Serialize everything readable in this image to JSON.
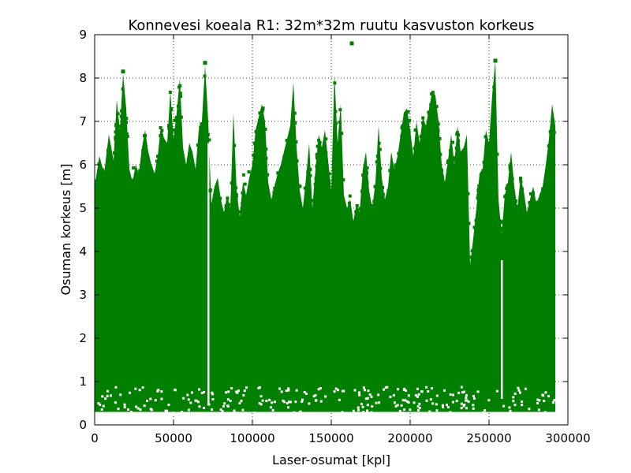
{
  "chart_data": {
    "type": "scatter",
    "title": "Konnevesi koeala R1: 32m*32m ruutu kasvuston korkeus",
    "xlabel": "Laser-osumat [kpl]",
    "ylabel": "Osuman korkeus [m]",
    "xlim": [
      0,
      300000
    ],
    "ylim": [
      0,
      9
    ],
    "grid": true,
    "marker_color": "#007f00",
    "x_ticks": [
      {
        "value": 0,
        "label": "0"
      },
      {
        "value": 50000,
        "label": "50000"
      },
      {
        "value": 100000,
        "label": "100000"
      },
      {
        "value": 150000,
        "label": "150000"
      },
      {
        "value": 200000,
        "label": "200000"
      },
      {
        "value": 250000,
        "label": "250000"
      },
      {
        "value": 300000,
        "label": "300000"
      }
    ],
    "y_ticks": [
      {
        "value": 0,
        "label": "0"
      },
      {
        "value": 1,
        "label": "1"
      },
      {
        "value": 2,
        "label": "2"
      },
      {
        "value": 3,
        "label": "3"
      },
      {
        "value": 4,
        "label": "4"
      },
      {
        "value": 5,
        "label": "5"
      },
      {
        "value": 6,
        "label": "6"
      },
      {
        "value": 7,
        "label": "7"
      },
      {
        "value": 8,
        "label": "8"
      },
      {
        "value": 9,
        "label": "9"
      }
    ],
    "envelope": [
      {
        "x": 0,
        "y": 5.5
      },
      {
        "x": 3000,
        "y": 6.2
      },
      {
        "x": 6000,
        "y": 5.8
      },
      {
        "x": 9000,
        "y": 6.7
      },
      {
        "x": 12000,
        "y": 6.1
      },
      {
        "x": 14000,
        "y": 7.5
      },
      {
        "x": 16000,
        "y": 6.8
      },
      {
        "x": 18000,
        "y": 8.1
      },
      {
        "x": 20000,
        "y": 7.3
      },
      {
        "x": 22000,
        "y": 5.9
      },
      {
        "x": 24000,
        "y": 5.6
      },
      {
        "x": 26000,
        "y": 6.0
      },
      {
        "x": 28000,
        "y": 5.8
      },
      {
        "x": 30000,
        "y": 6.4
      },
      {
        "x": 32000,
        "y": 6.8
      },
      {
        "x": 34000,
        "y": 6.3
      },
      {
        "x": 36000,
        "y": 6.0
      },
      {
        "x": 38000,
        "y": 5.8
      },
      {
        "x": 40000,
        "y": 6.2
      },
      {
        "x": 42000,
        "y": 6.9
      },
      {
        "x": 44000,
        "y": 6.6
      },
      {
        "x": 46000,
        "y": 6.5
      },
      {
        "x": 48000,
        "y": 7.7
      },
      {
        "x": 50000,
        "y": 6.6
      },
      {
        "x": 52000,
        "y": 7.2
      },
      {
        "x": 54000,
        "y": 8.0
      },
      {
        "x": 56000,
        "y": 6.4
      },
      {
        "x": 58000,
        "y": 6.0
      },
      {
        "x": 60000,
        "y": 6.5
      },
      {
        "x": 62000,
        "y": 6.3
      },
      {
        "x": 64000,
        "y": 5.9
      },
      {
        "x": 66000,
        "y": 6.8
      },
      {
        "x": 68000,
        "y": 7.0
      },
      {
        "x": 70000,
        "y": 8.3
      },
      {
        "x": 72000,
        "y": 7.0
      },
      {
        "x": 74000,
        "y": 5.1
      },
      {
        "x": 76000,
        "y": 5.5
      },
      {
        "x": 78000,
        "y": 5.7
      },
      {
        "x": 80000,
        "y": 5.2
      },
      {
        "x": 82000,
        "y": 4.9
      },
      {
        "x": 84000,
        "y": 5.3
      },
      {
        "x": 86000,
        "y": 5.0
      },
      {
        "x": 88000,
        "y": 7.2
      },
      {
        "x": 90000,
        "y": 5.4
      },
      {
        "x": 92000,
        "y": 4.8
      },
      {
        "x": 94000,
        "y": 5.6
      },
      {
        "x": 96000,
        "y": 5.3
      },
      {
        "x": 98000,
        "y": 5.7
      },
      {
        "x": 100000,
        "y": 6.0
      },
      {
        "x": 102000,
        "y": 6.8
      },
      {
        "x": 104000,
        "y": 7.1
      },
      {
        "x": 106000,
        "y": 7.4
      },
      {
        "x": 108000,
        "y": 7.0
      },
      {
        "x": 110000,
        "y": 5.6
      },
      {
        "x": 112000,
        "y": 5.2
      },
      {
        "x": 114000,
        "y": 5.5
      },
      {
        "x": 116000,
        "y": 5.8
      },
      {
        "x": 118000,
        "y": 6.0
      },
      {
        "x": 120000,
        "y": 6.3
      },
      {
        "x": 122000,
        "y": 6.6
      },
      {
        "x": 124000,
        "y": 6.9
      },
      {
        "x": 126000,
        "y": 7.9
      },
      {
        "x": 128000,
        "y": 6.4
      },
      {
        "x": 130000,
        "y": 5.4
      },
      {
        "x": 132000,
        "y": 5.0
      },
      {
        "x": 134000,
        "y": 5.7
      },
      {
        "x": 136000,
        "y": 6.5
      },
      {
        "x": 138000,
        "y": 5.0
      },
      {
        "x": 140000,
        "y": 5.9
      },
      {
        "x": 142000,
        "y": 6.7
      },
      {
        "x": 144000,
        "y": 6.4
      },
      {
        "x": 146000,
        "y": 6.8
      },
      {
        "x": 148000,
        "y": 6.1
      },
      {
        "x": 150000,
        "y": 5.4
      },
      {
        "x": 152000,
        "y": 8.1
      },
      {
        "x": 154000,
        "y": 6.5
      },
      {
        "x": 156000,
        "y": 7.4
      },
      {
        "x": 158000,
        "y": 5.3
      },
      {
        "x": 160000,
        "y": 5.0
      },
      {
        "x": 162000,
        "y": 5.2
      },
      {
        "x": 164000,
        "y": 4.7
      },
      {
        "x": 166000,
        "y": 5.1
      },
      {
        "x": 168000,
        "y": 4.9
      },
      {
        "x": 170000,
        "y": 5.9
      },
      {
        "x": 172000,
        "y": 6.3
      },
      {
        "x": 174000,
        "y": 5.4
      },
      {
        "x": 176000,
        "y": 5.0
      },
      {
        "x": 178000,
        "y": 5.6
      },
      {
        "x": 180000,
        "y": 6.9
      },
      {
        "x": 182000,
        "y": 5.7
      },
      {
        "x": 184000,
        "y": 5.2
      },
      {
        "x": 186000,
        "y": 5.5
      },
      {
        "x": 188000,
        "y": 6.3
      },
      {
        "x": 190000,
        "y": 5.9
      },
      {
        "x": 192000,
        "y": 6.2
      },
      {
        "x": 194000,
        "y": 6.7
      },
      {
        "x": 196000,
        "y": 7.2
      },
      {
        "x": 198000,
        "y": 7.3
      },
      {
        "x": 200000,
        "y": 6.8
      },
      {
        "x": 202000,
        "y": 6.2
      },
      {
        "x": 204000,
        "y": 7.0
      },
      {
        "x": 206000,
        "y": 6.5
      },
      {
        "x": 208000,
        "y": 7.1
      },
      {
        "x": 210000,
        "y": 6.9
      },
      {
        "x": 212000,
        "y": 7.3
      },
      {
        "x": 214000,
        "y": 7.7
      },
      {
        "x": 216000,
        "y": 7.6
      },
      {
        "x": 218000,
        "y": 7.0
      },
      {
        "x": 220000,
        "y": 6.0
      },
      {
        "x": 222000,
        "y": 5.6
      },
      {
        "x": 224000,
        "y": 6.1
      },
      {
        "x": 226000,
        "y": 6.7
      },
      {
        "x": 228000,
        "y": 6.0
      },
      {
        "x": 230000,
        "y": 6.9
      },
      {
        "x": 232000,
        "y": 6.3
      },
      {
        "x": 234000,
        "y": 6.4
      },
      {
        "x": 236000,
        "y": 6.7
      },
      {
        "x": 238000,
        "y": 3.7
      },
      {
        "x": 240000,
        "y": 4.3
      },
      {
        "x": 242000,
        "y": 5.0
      },
      {
        "x": 244000,
        "y": 5.8
      },
      {
        "x": 246000,
        "y": 5.9
      },
      {
        "x": 248000,
        "y": 6.8
      },
      {
        "x": 250000,
        "y": 6.5
      },
      {
        "x": 252000,
        "y": 7.6
      },
      {
        "x": 254000,
        "y": 8.4
      },
      {
        "x": 256000,
        "y": 5.2
      },
      {
        "x": 258000,
        "y": 4.4
      },
      {
        "x": 260000,
        "y": 5.3
      },
      {
        "x": 262000,
        "y": 5.6
      },
      {
        "x": 264000,
        "y": 6.3
      },
      {
        "x": 266000,
        "y": 5.5
      },
      {
        "x": 268000,
        "y": 5.0
      },
      {
        "x": 270000,
        "y": 5.7
      },
      {
        "x": 272000,
        "y": 5.4
      },
      {
        "x": 274000,
        "y": 4.9
      },
      {
        "x": 276000,
        "y": 5.2
      },
      {
        "x": 278000,
        "y": 5.5
      },
      {
        "x": 280000,
        "y": 5.1
      },
      {
        "x": 282000,
        "y": 5.3
      },
      {
        "x": 284000,
        "y": 5.5
      },
      {
        "x": 286000,
        "y": 6.0
      },
      {
        "x": 288000,
        "y": 6.6
      },
      {
        "x": 290000,
        "y": 7.4
      },
      {
        "x": 292000,
        "y": 6.9
      }
    ],
    "gaps": [
      {
        "x": 72000,
        "y_low": 0.5,
        "y_high": 6.5
      },
      {
        "x": 258000,
        "y_low": 0.6,
        "y_high": 3.8
      }
    ],
    "outliers": [
      {
        "x": 163000,
        "y": 8.8
      },
      {
        "x": 254000,
        "y": 8.4
      },
      {
        "x": 70000,
        "y": 8.35
      },
      {
        "x": 18000,
        "y": 8.15
      }
    ]
  }
}
